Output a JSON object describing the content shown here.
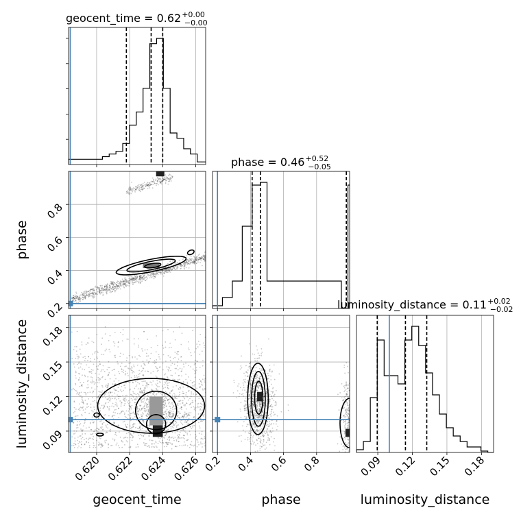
{
  "chart_data": {
    "type": "corner",
    "parameters": [
      "geocent_time",
      "phase",
      "luminosity_distance"
    ],
    "titles": [
      {
        "param": "geocent_time",
        "text": "geocent_time = 0.62",
        "plus": "+0.00",
        "minus": "−0.00"
      },
      {
        "param": "phase",
        "text": "phase = 0.46",
        "plus": "+0.52",
        "minus": "−0.05"
      },
      {
        "param": "luminosity_distance",
        "text": "luminosity_distance = 0.11",
        "plus": "+0.02",
        "minus": "−0.02"
      }
    ],
    "axis_labels": {
      "x": [
        "geocent_time",
        "phase",
        "luminosity_distance"
      ],
      "y": [
        "phase",
        "luminosity_distance"
      ]
    },
    "ranges": {
      "geocent_time": [
        0.6183,
        0.6266
      ],
      "phase": [
        0.17,
        1.0
      ],
      "luminosity_distance": [
        0.0715,
        0.1905
      ]
    },
    "ticks": {
      "geocent_time": {
        "values": [
          0.62,
          0.622,
          0.624,
          0.626
        ],
        "labels": [
          "0.620",
          "0.622",
          "0.624",
          "0.626"
        ]
      },
      "phase": {
        "values": [
          0.2,
          0.4,
          0.6,
          0.8
        ],
        "labels": [
          "0.2",
          "0.4",
          "0.6",
          "0.8"
        ]
      },
      "luminosity_distance": {
        "values": [
          0.09,
          0.12,
          0.15,
          0.18
        ],
        "labels": [
          "0.09",
          "0.12",
          "0.15",
          "0.18"
        ]
      }
    },
    "truths": {
      "geocent_time": 0.6184,
      "phase": 0.2,
      "luminosity_distance": 0.1
    },
    "quantiles": {
      "geocent_time": [
        0.6218,
        0.6233,
        0.624
      ],
      "phase": [
        0.41,
        0.46,
        0.98
      ],
      "luminosity_distance": [
        0.0895,
        0.114,
        0.1325
      ]
    },
    "histograms": {
      "geocent_time": {
        "edges": [
          0.6183,
          0.62035,
          0.62076,
          0.62117,
          0.62158,
          0.62199,
          0.6224,
          0.62281,
          0.62322,
          0.62363,
          0.62404,
          0.62445,
          0.62486,
          0.62527,
          0.62568,
          0.62609,
          0.6266
        ],
        "counts": [
          4,
          6,
          8,
          10,
          16,
          30,
          40,
          58,
          92,
          96,
          58,
          24,
          20,
          12,
          8,
          2
        ]
      },
      "phase": {
        "edges": [
          0.17,
          0.23,
          0.29,
          0.35,
          0.41,
          0.46,
          0.5,
          0.95,
          0.99,
          1.0
        ],
        "counts": [
          2,
          8,
          20,
          60,
          90,
          92,
          20,
          0,
          90
        ]
      },
      "luminosity_distance": {
        "edges": [
          0.0715,
          0.0775,
          0.0835,
          0.0895,
          0.0955,
          0.1015,
          0.1075,
          0.1135,
          0.1195,
          0.1255,
          0.1315,
          0.1375,
          0.1435,
          0.1495,
          0.1555,
          0.1615,
          0.1675,
          0.1735,
          0.1795,
          0.1855,
          0.1905
        ],
        "counts": [
          2,
          8,
          40,
          82,
          56,
          56,
          50,
          82,
          92,
          78,
          58,
          42,
          28,
          18,
          12,
          8,
          4,
          4,
          1,
          0
        ]
      }
    },
    "panels_2d": [
      {
        "x": "geocent_time",
        "y": "phase"
      },
      {
        "x": "geocent_time",
        "y": "luminosity_distance"
      },
      {
        "x": "phase",
        "y": "luminosity_distance"
      }
    ],
    "colors": {
      "truth": "#4682b4",
      "hist": "#000000",
      "grid": "#b0b0b0"
    },
    "grid": true
  }
}
